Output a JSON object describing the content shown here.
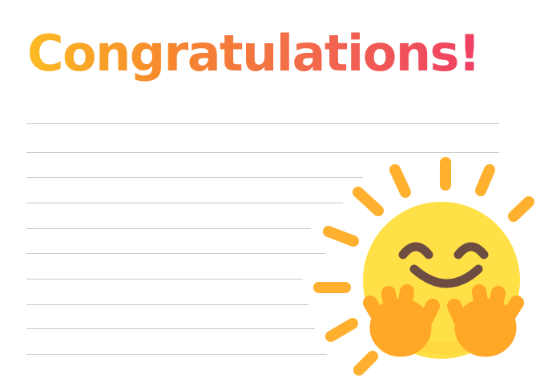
{
  "card": {
    "title": "Congratulations!",
    "writing_lines": 10,
    "illustration": "hugging-sun-icon"
  },
  "colors": {
    "title_gradient": [
      "#fbbc24",
      "#f7892c",
      "#f26a4b",
      "#ef3f64"
    ],
    "rule_line": "#c9c9c9",
    "sun_face": "#ffe046",
    "sun_rays": "#ffb02e",
    "hands": "#ffa726",
    "features": "#6d4c41"
  }
}
